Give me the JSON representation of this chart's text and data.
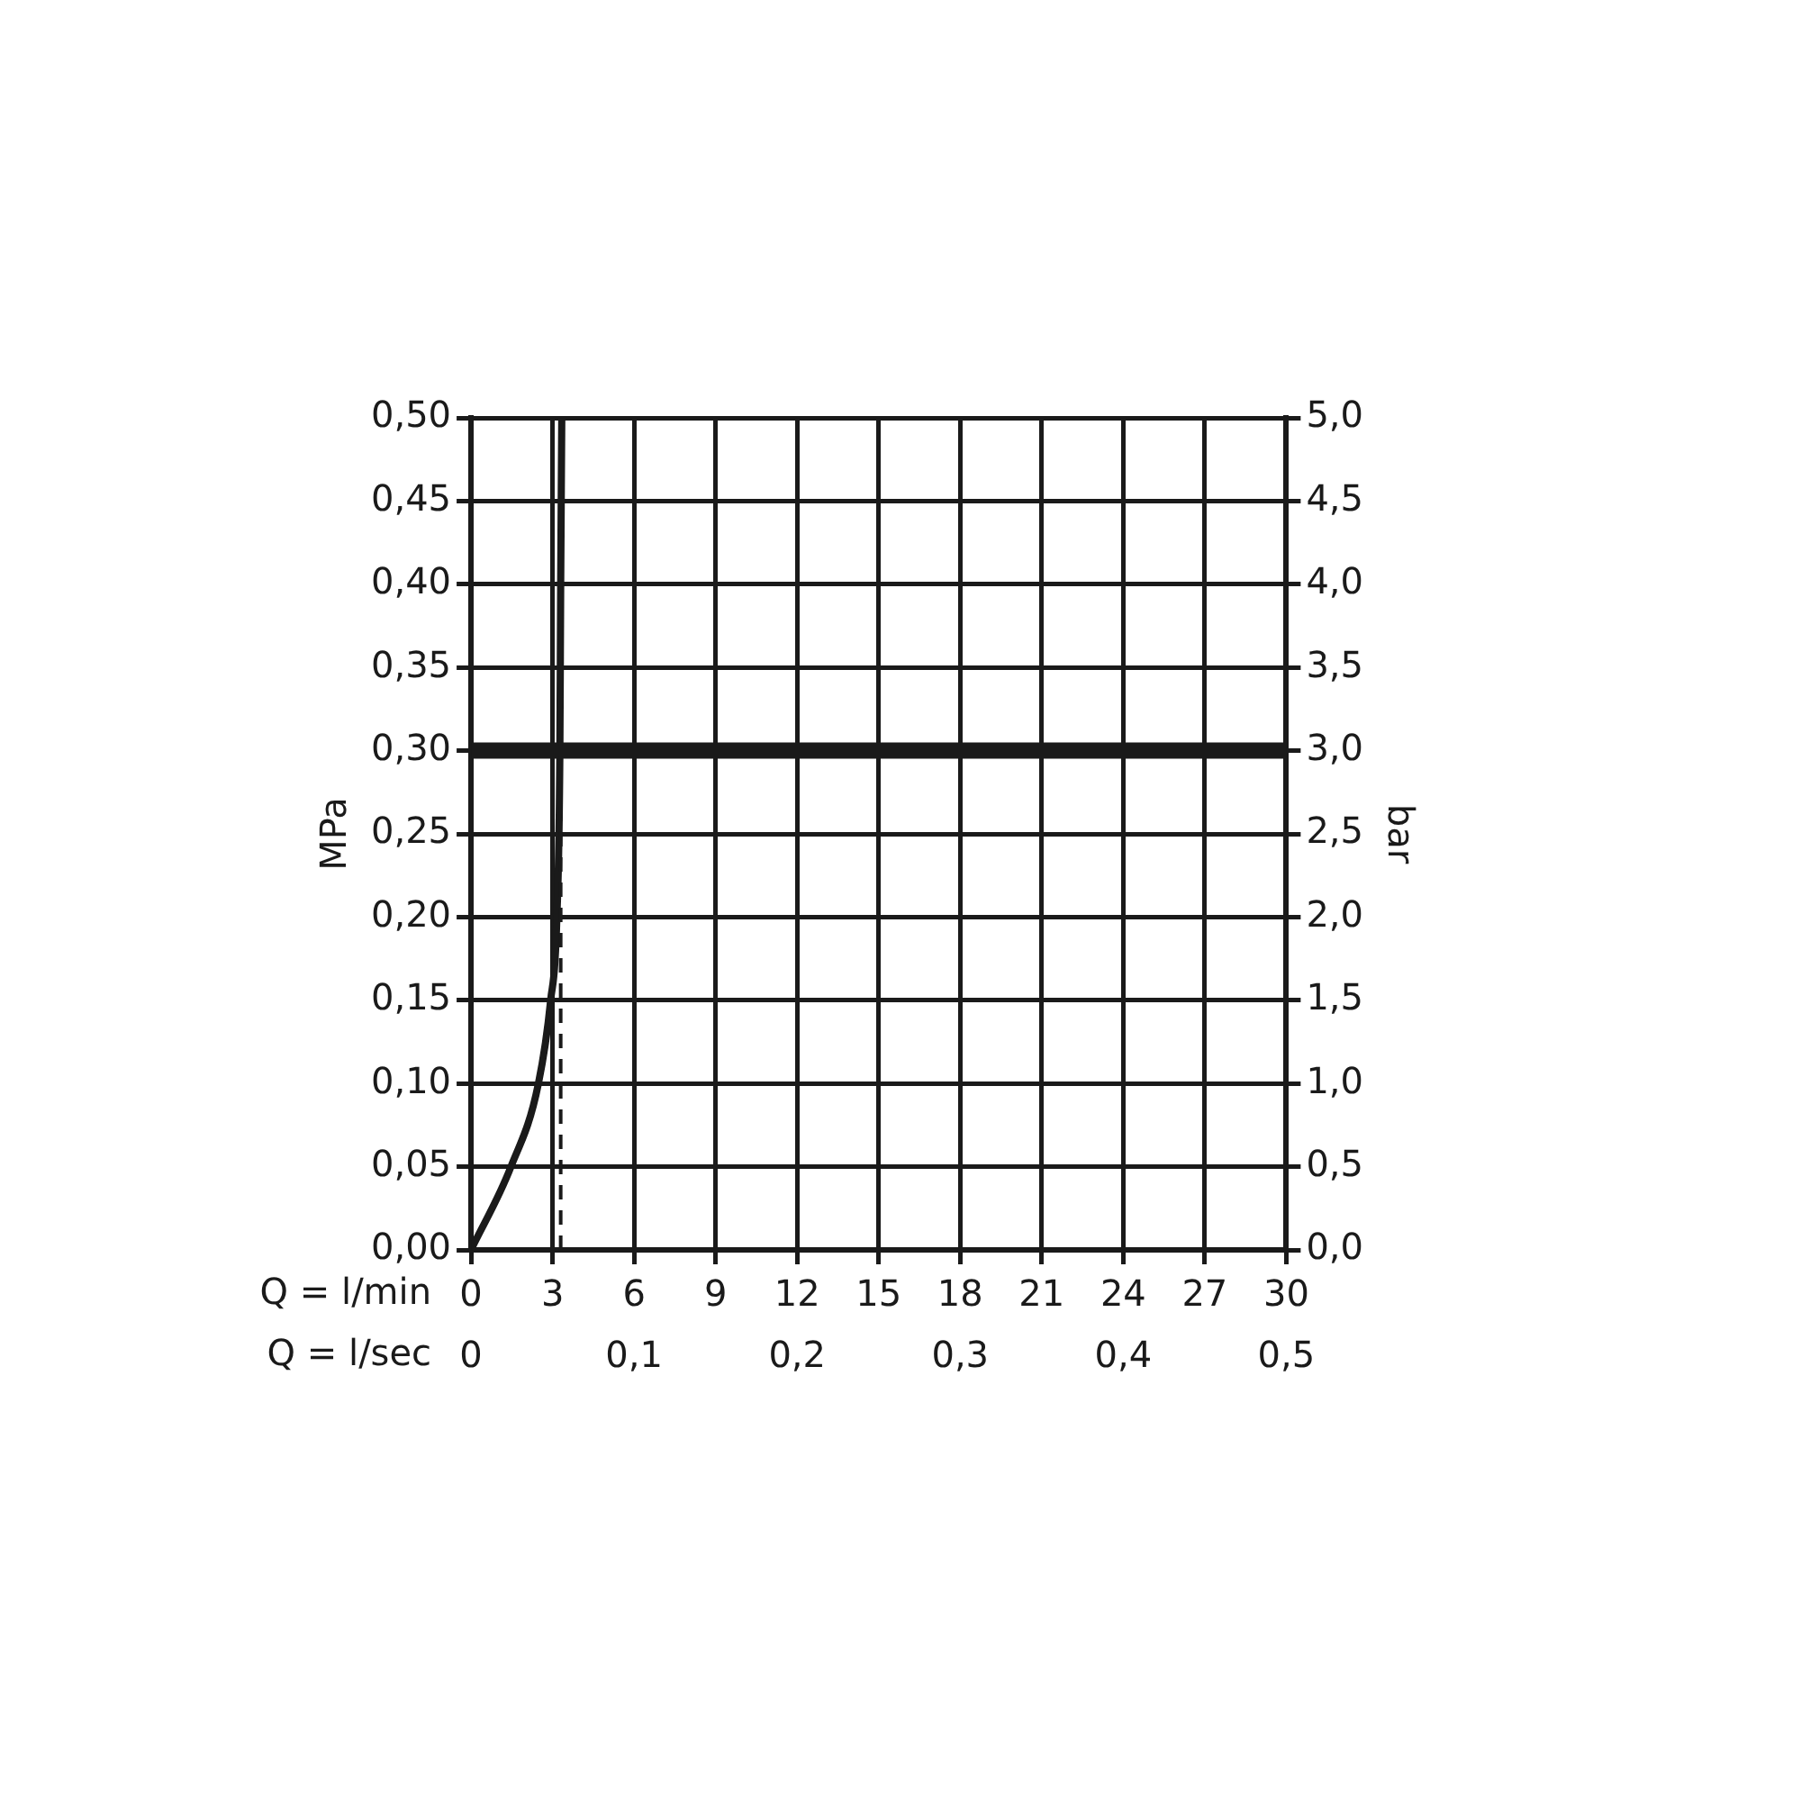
{
  "chart_data": {
    "type": "line",
    "xlabel": "Q = l/min",
    "x2label": "Q = l/sec",
    "ylabel": "MPa",
    "y2label": "bar",
    "x": [
      0,
      1.47,
      2.48,
      2.93,
      3.16,
      3.27,
      3.3,
      3.34
    ],
    "series": [
      {
        "color": "#1a1a1a",
        "values": [
          0,
          0.05,
          0.1,
          0.15,
          0.2,
          0.3,
          0.4,
          0.5
        ]
      }
    ],
    "xlim": [
      0,
      30
    ],
    "xticks": [
      0,
      3,
      6,
      9,
      12,
      15,
      18,
      21,
      24,
      27,
      30
    ],
    "x2lim": [
      0,
      0.5
    ],
    "x2ticks": [
      0,
      {
        "value": 0.1,
        "label": "0,1"
      },
      {
        "value": 0.2,
        "label": "0,2"
      },
      {
        "value": 0.3,
        "label": "0,3"
      },
      {
        "value": 0.4,
        "label": "0,4"
      },
      {
        "value": 0.5,
        "label": "0,5"
      }
    ],
    "ylim": [
      0,
      0.5
    ],
    "yticks": [
      {
        "value": 0,
        "label": "0,00"
      },
      {
        "value": 0.05,
        "label": "0,05"
      },
      {
        "value": 0.1,
        "label": "0,10"
      },
      {
        "value": 0.15,
        "label": "0,15"
      },
      {
        "value": 0.2,
        "label": "0,20"
      },
      {
        "value": 0.25,
        "label": "0,25"
      },
      {
        "value": 0.3,
        "label": "0,30"
      },
      {
        "value": 0.35,
        "label": "0,35"
      },
      {
        "value": 0.4,
        "label": "0,40"
      },
      {
        "value": 0.45,
        "label": "0,45"
      },
      {
        "value": 0.5,
        "label": "0,50"
      }
    ],
    "y2lim": [
      0,
      5
    ],
    "y2ticks": [
      {
        "value": 0,
        "label": "0,0"
      },
      {
        "value": 0.5,
        "label": "0,5"
      },
      {
        "value": 1,
        "label": "1,0"
      },
      {
        "value": 1.5,
        "label": "1,5"
      },
      {
        "value": 2,
        "label": "2,0"
      },
      {
        "value": 2.5,
        "label": "2,5"
      },
      {
        "value": 3,
        "label": "3,0"
      },
      {
        "value": 3.5,
        "label": "3,5"
      },
      {
        "value": 4,
        "label": "4,0"
      },
      {
        "value": 4.5,
        "label": "4,5"
      },
      {
        "value": 5,
        "label": "5,0"
      }
    ],
    "ref_lines": [
      {
        "axis": "y",
        "value": 0.3,
        "color": "#1a1a1a",
        "line_style": "solid"
      },
      {
        "axis": "x",
        "value": 3.3,
        "color": "#1a1a1a",
        "line_style": "dashed"
      }
    ],
    "grid": true,
    "marker": "none",
    "line_style": "solid"
  }
}
